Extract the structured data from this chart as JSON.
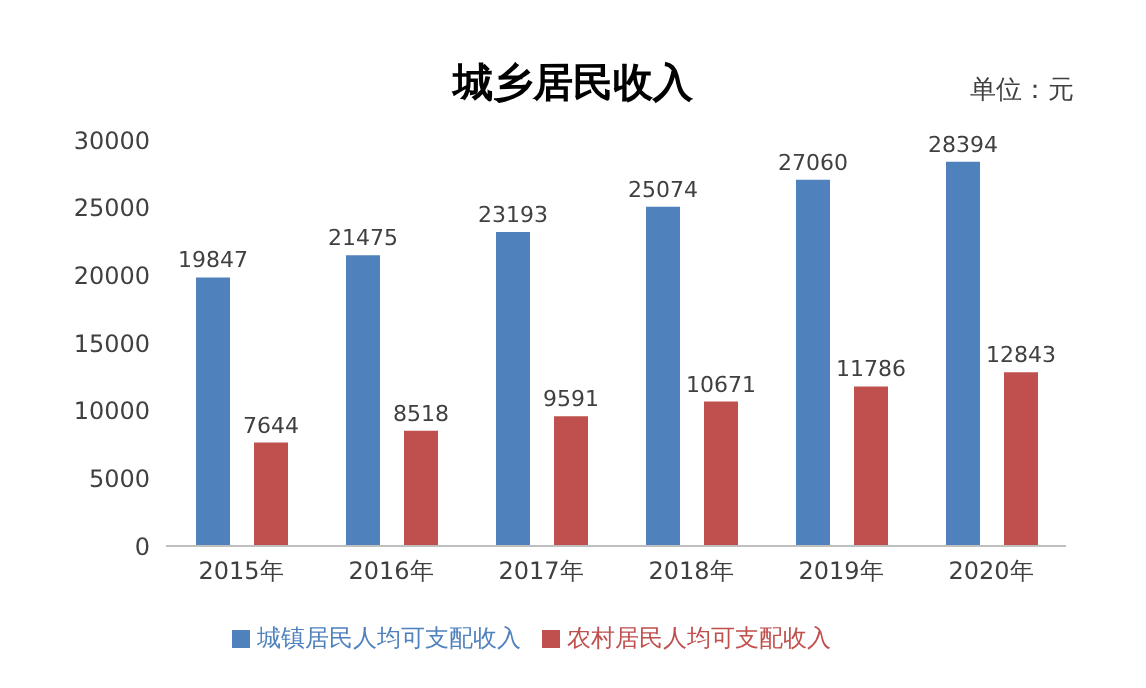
{
  "chart_data": {
    "type": "bar",
    "title": "城乡居民收入",
    "annotations": [
      "单位：元"
    ],
    "categories": [
      "2015年",
      "2016年",
      "2017年",
      "2018年",
      "2019年",
      "2020年"
    ],
    "series": [
      {
        "name": "城镇居民人均可支配收入",
        "color": "#4f81bd",
        "values": [
          19847,
          21475,
          23193,
          25074,
          27060,
          28394
        ]
      },
      {
        "name": "农村居民人均可支配收入",
        "color": "#c0504d",
        "values": [
          7644,
          8518,
          9591,
          10671,
          11786,
          12843
        ]
      }
    ],
    "ylim": [
      0,
      30000
    ],
    "yticks": [
      0,
      5000,
      10000,
      15000,
      20000,
      25000,
      30000
    ],
    "data_labels": true,
    "legend": "bottom"
  }
}
